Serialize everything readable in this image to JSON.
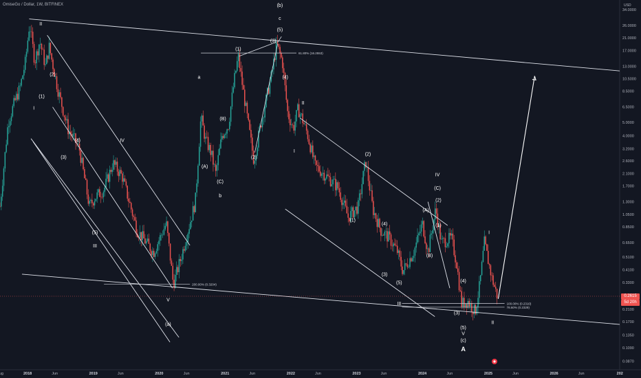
{
  "header": {
    "title": "OmiseGo / Dollar, 1W, BITFINEX"
  },
  "currency": "USD",
  "colors": {
    "background": "#131722",
    "up": "#26a69a",
    "down": "#ef5350",
    "text": "#b2b5be",
    "wave": "#ffffff",
    "axis_border": "#2a2e39"
  },
  "chart_data": {
    "type": "candlestick",
    "title": "OmiseGo / Dollar, 1W, BITFINEX",
    "y_scale": "log",
    "ylim": [
      0.075,
      40
    ],
    "xlim": [
      "2017-08-01",
      "2026-12-31"
    ],
    "y_ticks": [
      "34.0000",
      "26.0000",
      "21.0000",
      "17.0000",
      "13.0000",
      "10.5000",
      "8.5000",
      "6.5000",
      "5.0000",
      "4.0000",
      "3.2000",
      "2.6000",
      "2.1000",
      "1.7000",
      "1.3000",
      "1.0500",
      "0.8500",
      "0.6500",
      "0.5100",
      "0.4100",
      "0.3300",
      "0.2100",
      "0.1700",
      "0.1350",
      "0.1090",
      "0.0870"
    ],
    "x_ticks": [
      {
        "label": "Aug",
        "date": "2017-08-01"
      },
      {
        "label": "2018",
        "date": "2018-01-01"
      },
      {
        "label": "Jun",
        "date": "2018-06-01"
      },
      {
        "label": "2019",
        "date": "2019-01-01"
      },
      {
        "label": "Jun",
        "date": "2019-06-01"
      },
      {
        "label": "2020",
        "date": "2020-01-01"
      },
      {
        "label": "Jun",
        "date": "2020-06-01"
      },
      {
        "label": "2021",
        "date": "2021-01-01"
      },
      {
        "label": "Jun",
        "date": "2021-06-01"
      },
      {
        "label": "2022",
        "date": "2022-01-01"
      },
      {
        "label": "Jun",
        "date": "2022-06-01"
      },
      {
        "label": "2023",
        "date": "2023-01-01"
      },
      {
        "label": "Jun",
        "date": "2023-06-01"
      },
      {
        "label": "2024",
        "date": "2024-01-01"
      },
      {
        "label": "Jun",
        "date": "2024-06-01"
      },
      {
        "label": "2025",
        "date": "2025-01-01"
      },
      {
        "label": "Jun",
        "date": "2025-06-01"
      },
      {
        "label": "2026",
        "date": "2026-01-01"
      },
      {
        "label": "Jun",
        "date": "2026-06-01"
      },
      {
        "label": "202",
        "date": "2027-01-01"
      }
    ],
    "price_path": [
      [
        "2017-08-01",
        1.2
      ],
      [
        "2017-09-15",
        5
      ],
      [
        "2017-10-20",
        7
      ],
      [
        "2017-11-20",
        9
      ],
      [
        "2017-12-20",
        14
      ],
      [
        "2018-01-12",
        27
      ],
      [
        "2018-02-10",
        14
      ],
      [
        "2018-03-10",
        20
      ],
      [
        "2018-04-10",
        13
      ],
      [
        "2018-05-01",
        18
      ],
      [
        "2018-06-20",
        8.5
      ],
      [
        "2018-08-15",
        4.4
      ],
      [
        "2018-09-10",
        3.9
      ],
      [
        "2018-10-15",
        3.2
      ],
      [
        "2018-12-10",
        1.2
      ],
      [
        "2019-01-10",
        1.4
      ],
      [
        "2019-03-01",
        1.6
      ],
      [
        "2019-04-20",
        2.5
      ],
      [
        "2019-06-10",
        2.0
      ],
      [
        "2019-09-01",
        0.8
      ],
      [
        "2019-12-01",
        0.55
      ],
      [
        "2020-02-10",
        0.9
      ],
      [
        "2020-03-20",
        0.32
      ],
      [
        "2020-05-01",
        0.5
      ],
      [
        "2020-07-20",
        1.3
      ],
      [
        "2020-08-20",
        5.5
      ],
      [
        "2020-09-15",
        3.7
      ],
      [
        "2020-10-15",
        3.0
      ],
      [
        "2020-11-10",
        2.1
      ],
      [
        "2020-12-15",
        4.0
      ],
      [
        "2021-01-20",
        4.8
      ],
      [
        "2021-02-20",
        10
      ],
      [
        "2021-03-15",
        15.4
      ],
      [
        "2021-04-15",
        8
      ],
      [
        "2021-06-10",
        2.6
      ],
      [
        "2021-07-20",
        5
      ],
      [
        "2021-09-15",
        11
      ],
      [
        "2021-10-15",
        19
      ],
      [
        "2021-11-15",
        14
      ],
      [
        "2021-12-15",
        5.8
      ],
      [
        "2022-01-15",
        4.5
      ],
      [
        "2022-02-10",
        6.3
      ],
      [
        "2022-03-01",
        5.5
      ],
      [
        "2022-04-01",
        4.2
      ],
      [
        "2022-05-15",
        2.4
      ],
      [
        "2022-08-15",
        1.85
      ],
      [
        "2022-09-20",
        1.65
      ],
      [
        "2022-11-15",
        1.0
      ],
      [
        "2023-01-10",
        1.2
      ],
      [
        "2023-02-20",
        2.6
      ],
      [
        "2023-04-01",
        1.15
      ],
      [
        "2023-05-15",
        0.8
      ],
      [
        "2023-07-01",
        0.7
      ],
      [
        "2023-08-15",
        0.56
      ],
      [
        "2023-09-15",
        0.4
      ],
      [
        "2023-11-15",
        0.56
      ],
      [
        "2024-01-01",
        0.9
      ],
      [
        "2024-02-01",
        0.55
      ],
      [
        "2024-03-15",
        1.15
      ],
      [
        "2024-04-15",
        0.65
      ],
      [
        "2024-06-10",
        0.7
      ],
      [
        "2024-07-10",
        0.45
      ],
      [
        "2024-08-05",
        0.23
      ],
      [
        "2024-09-10",
        0.24
      ],
      [
        "2024-10-20",
        0.2
      ],
      [
        "2024-11-15",
        0.32
      ],
      [
        "2024-12-10",
        0.65
      ],
      [
        "2025-01-20",
        0.36
      ],
      [
        "2025-02-20",
        0.26
      ]
    ],
    "last_price": "0.2615",
    "countdown": "5d 20h",
    "fib_levels": [
      {
        "label": "61.80% (16.2553)",
        "price": 16.2553
      },
      {
        "label": "200.00% (0.3204)",
        "price": 0.3204
      },
      {
        "label": "100.00% (0.2310)",
        "price": 0.231
      },
      {
        "label": "78.60% (0.2329)",
        "price": 0.2329
      }
    ],
    "wave_labels": [
      {
        "text": "II",
        "date": "2018-03-15",
        "price": 26
      },
      {
        "text": "(2)",
        "date": "2018-05-20",
        "price": 11
      },
      {
        "text": "(1)",
        "date": "2018-03-20",
        "price": 7.6
      },
      {
        "text": "I",
        "date": "2018-02-05",
        "price": 6.2
      },
      {
        "text": "(4)",
        "date": "2018-10-05",
        "price": 3.6
      },
      {
        "text": "(3)",
        "date": "2018-07-20",
        "price": 2.7
      },
      {
        "text": "IV",
        "date": "2019-06-10",
        "price": 3.6
      },
      {
        "text": "(5)",
        "date": "2019-01-10",
        "price": 0.75
      },
      {
        "text": "III",
        "date": "2019-01-10",
        "price": 0.6
      },
      {
        "text": "V",
        "date": "2020-02-20",
        "price": 0.24
      },
      {
        "text": "(a)",
        "date": "2020-02-20",
        "price": 0.158
      },
      {
        "text": "a",
        "date": "2020-08-10",
        "price": 10.5
      },
      {
        "text": "(B)",
        "date": "2020-12-20",
        "price": 5.2
      },
      {
        "text": "(A)",
        "date": "2020-09-10",
        "price": 2.3
      },
      {
        "text": "(C)",
        "date": "2020-12-05",
        "price": 1.78
      },
      {
        "text": "b",
        "date": "2020-12-05",
        "price": 1.4
      },
      {
        "text": "(1)",
        "date": "2021-03-15",
        "price": 17
      },
      {
        "text": "(2)",
        "date": "2021-06-10",
        "price": 2.7
      },
      {
        "text": "(3)",
        "date": "2021-09-25",
        "price": 19.5
      },
      {
        "text": "(4)",
        "date": "2021-12-01",
        "price": 10.5
      },
      {
        "text": "(5)",
        "date": "2021-11-01",
        "price": 23.5
      },
      {
        "text": "c",
        "date": "2021-11-01",
        "price": 28.5
      },
      {
        "text": "(b)",
        "date": "2021-11-01",
        "price": 35.5
      },
      {
        "text": "II",
        "date": "2022-03-10",
        "price": 6.8
      },
      {
        "text": "I",
        "date": "2022-01-20",
        "price": 3.0
      },
      {
        "text": "(2)",
        "date": "2023-03-05",
        "price": 2.85
      },
      {
        "text": "(1)",
        "date": "2022-12-10",
        "price": 0.93
      },
      {
        "text": "(4)",
        "date": "2023-06-05",
        "price": 0.87
      },
      {
        "text": "(3)",
        "date": "2023-06-05",
        "price": 0.37
      },
      {
        "text": "(5)",
        "date": "2023-08-25",
        "price": 0.32
      },
      {
        "text": "III",
        "date": "2023-08-25",
        "price": 0.225
      },
      {
        "text": "(A)",
        "date": "2024-01-20",
        "price": 1.1
      },
      {
        "text": "(B)",
        "date": "2024-02-10",
        "price": 0.51
      },
      {
        "text": "IV",
        "date": "2024-03-25",
        "price": 2.0
      },
      {
        "text": "(C)",
        "date": "2024-03-25",
        "price": 1.6
      },
      {
        "text": "(2)",
        "date": "2024-03-30",
        "price": 1.3
      },
      {
        "text": "(1)",
        "date": "2024-03-30",
        "price": 0.85
      },
      {
        "text": "(4)",
        "date": "2024-08-15",
        "price": 0.33
      },
      {
        "text": "(3)",
        "date": "2024-07-10",
        "price": 0.192
      },
      {
        "text": "(5)",
        "date": "2024-08-15",
        "price": 0.149
      },
      {
        "text": "V",
        "date": "2024-08-15",
        "price": 0.135
      },
      {
        "text": "(c)",
        "date": "2024-08-15",
        "price": 0.12
      },
      {
        "text": "A",
        "date": "2024-08-15",
        "price": 0.103
      },
      {
        "text": "I",
        "date": "2025-01-05",
        "price": 0.75
      },
      {
        "text": "II",
        "date": "2025-01-25",
        "price": 0.163
      }
    ],
    "channels": [
      {
        "from": [
          "2018-01-10",
          29
        ],
        "to": [
          "2026-12-31",
          12
        ]
      },
      {
        "from": [
          "2017-12-01",
          0.38
        ],
        "to": [
          "2026-12-31",
          0.162
        ]
      },
      {
        "from": [
          "2018-04-20",
          22
        ],
        "to": [
          "2020-06-20",
          0.62
        ]
      },
      {
        "from": [
          "2018-02-01",
          3.6
        ],
        "to": [
          "2020-03-01",
          0.12
        ]
      },
      {
        "from": [
          "2018-05-20",
          6.5
        ],
        "to": [
          "2020-03-15",
          0.3
        ]
      },
      {
        "from": [
          "2018-01-20",
          3.8
        ],
        "to": [
          "2020-04-20",
          0.13
        ]
      },
      {
        "from": [
          "2022-02-20",
          5.4
        ],
        "to": [
          "2024-05-20",
          0.87
        ]
      },
      {
        "from": [
          "2021-12-01",
          1.15
        ],
        "to": [
          "2024-03-10",
          0.185
        ]
      },
      {
        "from": [
          "2024-02-01",
          1.3
        ],
        "to": [
          "2024-06-01",
          0.3
        ]
      }
    ],
    "projection": {
      "from": [
        "2025-02-25",
        0.25
      ],
      "to": [
        "2025-09-15",
        11
      ]
    },
    "bottom_marker": "red circle below last candles"
  }
}
